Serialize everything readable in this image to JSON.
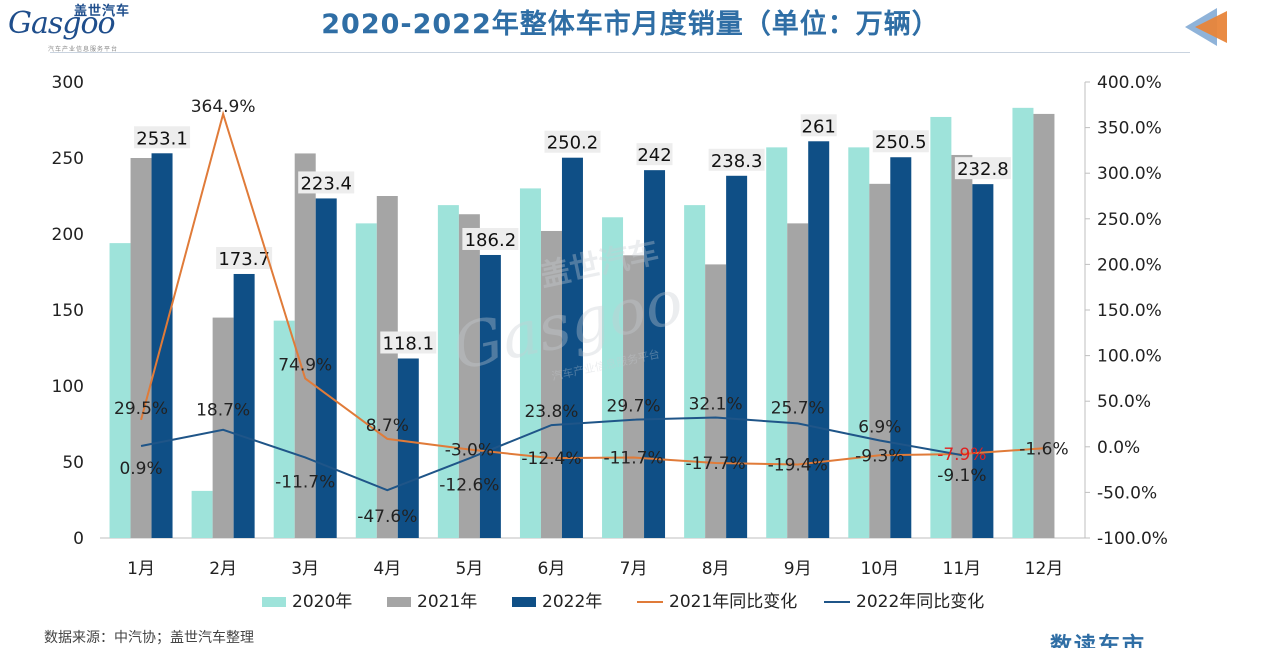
{
  "header": {
    "title": "2020-2022年整体车市月度销量（单位：万辆）",
    "logo_text": "Gasgoo",
    "logo_cn": "盖世汽车",
    "logo_sub": "汽车产业信息服务平台"
  },
  "footer": {
    "source": "数据来源：中汽协；盖世汽车整理",
    "brand": "数读车市"
  },
  "watermark": {
    "cn": "盖世汽车",
    "en": "Gasgoo",
    "sub": "汽车产业信息服务平台"
  },
  "colors": {
    "s2020": "#9ee3da",
    "s2021": "#a5a5a5",
    "s2022": "#0f4f86",
    "line2021": "#e07b39",
    "line2022": "#1f5588",
    "neg_label": "#e02020",
    "title": "#2f6ea5"
  },
  "chart_data": {
    "type": "bar",
    "categories": [
      "1月",
      "2月",
      "3月",
      "4月",
      "5月",
      "6月",
      "7月",
      "8月",
      "9月",
      "10月",
      "11月",
      "12月"
    ],
    "series": [
      {
        "name": "2020年",
        "type": "bar",
        "axis": "left",
        "values": [
          194,
          31,
          143,
          207,
          219,
          230,
          211,
          219,
          257,
          257,
          277,
          283
        ]
      },
      {
        "name": "2021年",
        "type": "bar",
        "axis": "left",
        "values": [
          250,
          145,
          253,
          225,
          213,
          202,
          186,
          180,
          207,
          233,
          252,
          279
        ]
      },
      {
        "name": "2022年",
        "type": "bar",
        "axis": "left",
        "values": [
          253.1,
          173.7,
          223.4,
          118.1,
          186.2,
          250.2,
          242,
          238.3,
          261,
          250.5,
          232.8,
          null
        ],
        "labels": [
          "253.1",
          "173.7",
          "223.4",
          "118.1",
          "186.2",
          "250.2",
          "242",
          "238.3",
          "261",
          "250.5",
          "232.8",
          ""
        ]
      },
      {
        "name": "2021年同比变化",
        "type": "line",
        "axis": "right",
        "values": [
          29.5,
          364.9,
          74.9,
          8.7,
          -3.0,
          -12.4,
          -11.7,
          -17.7,
          -19.4,
          -9.3,
          -7.9,
          -1.6
        ],
        "labels": [
          "29.5%",
          "364.9%",
          "74.9%",
          "8.7%",
          "-3.0%",
          "-12.4%",
          "-11.7%",
          "-17.7%",
          "-19.4%",
          "-9.3%",
          "-7.9%",
          "-1.6%"
        ]
      },
      {
        "name": "2022年同比变化",
        "type": "line",
        "axis": "right",
        "values": [
          0.9,
          18.7,
          -11.7,
          -47.6,
          -12.6,
          23.8,
          29.7,
          32.1,
          25.7,
          6.9,
          -9.1,
          null
        ],
        "labels": [
          "0.9%",
          "18.7%",
          "-11.7%",
          "-47.6%",
          "-12.6%",
          "23.8%",
          "29.7%",
          "32.1%",
          "25.7%",
          "6.9%",
          "-9.1%",
          ""
        ]
      }
    ],
    "left_axis": {
      "min": 0,
      "max": 300,
      "ticks": [
        "0",
        "50",
        "100",
        "150",
        "200",
        "250",
        "300"
      ]
    },
    "right_axis": {
      "min": -100,
      "max": 400,
      "ticks": [
        "-100.0%",
        "-50.0%",
        "0.0%",
        "50.0%",
        "100.0%",
        "150.0%",
        "200.0%",
        "250.0%",
        "300.0%",
        "350.0%",
        "400.0%"
      ]
    },
    "legend_position": "bottom",
    "grid": false
  }
}
